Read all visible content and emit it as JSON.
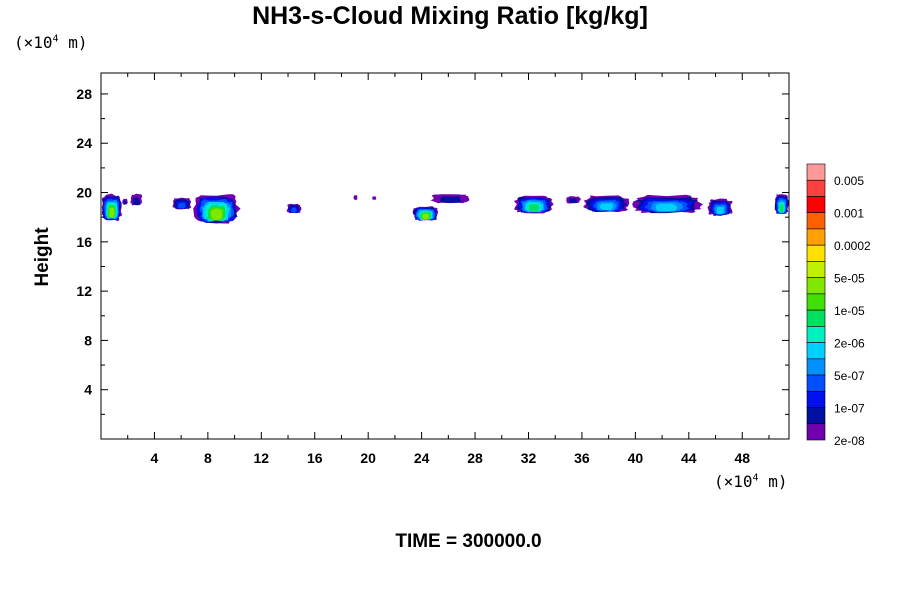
{
  "chart_data": {
    "type": "heatmap",
    "title": "NH3-s-Cloud Mixing Ratio [kg/kg]",
    "ylabel": "Height",
    "xlabel": "",
    "x_unit": {
      "prefix": "(×10",
      "exp": "4",
      "suffix": " m)"
    },
    "y_unit": {
      "prefix": "(×10",
      "exp": "4",
      "suffix": " m)"
    },
    "xlim": [
      0,
      51.5
    ],
    "ylim": [
      0,
      29.7
    ],
    "x_ticks": [
      "4",
      "8",
      "12",
      "16",
      "20",
      "24",
      "28",
      "32",
      "36",
      "40",
      "44",
      "48"
    ],
    "x_tick_values": [
      4,
      8,
      12,
      16,
      20,
      24,
      28,
      32,
      36,
      40,
      44,
      48
    ],
    "y_ticks": [
      "4",
      "8",
      "12",
      "16",
      "20",
      "24",
      "28"
    ],
    "y_tick_values": [
      4,
      8,
      12,
      16,
      20,
      24,
      28
    ],
    "grid": false,
    "colorbar": {
      "labels": [
        "0.005",
        "0.001",
        "0.0002",
        "5e-05",
        "1e-05",
        "2e-06",
        "5e-07",
        "1e-07",
        "2e-08"
      ],
      "colors": [
        "#ff9999",
        "#ff4040",
        "#ff0000",
        "#ff6000",
        "#ffa000",
        "#ffe000",
        "#c0f000",
        "#80e800",
        "#40e000",
        "#00e060",
        "#00f0c0",
        "#00d0ff",
        "#0090ff",
        "#0050ff",
        "#0010f0",
        "#0010a0",
        "#7000b0"
      ]
    },
    "cloud_layer": {
      "height_range": [
        17.5,
        20.0
      ],
      "patches": [
        {
          "x": [
            0.0,
            1.6
          ],
          "y": [
            17.7,
            19.9
          ],
          "max_level": "5e-05"
        },
        {
          "x": [
            1.6,
            2.0
          ],
          "y": [
            19.0,
            19.5
          ],
          "max_level": "1e-07"
        },
        {
          "x": [
            2.2,
            3.1
          ],
          "y": [
            18.9,
            19.9
          ],
          "max_level": "1e-07"
        },
        {
          "x": [
            5.3,
            6.8
          ],
          "y": [
            18.6,
            19.6
          ],
          "max_level": "5e-07"
        },
        {
          "x": [
            6.9,
            10.4
          ],
          "y": [
            17.5,
            19.9
          ],
          "max_level": "5e-05"
        },
        {
          "x": [
            13.9,
            15.0
          ],
          "y": [
            18.3,
            19.1
          ],
          "max_level": "5e-07"
        },
        {
          "x": [
            18.9,
            19.2
          ],
          "y": [
            19.4,
            19.8
          ],
          "max_level": "2e-08"
        },
        {
          "x": [
            20.3,
            20.6
          ],
          "y": [
            19.4,
            19.7
          ],
          "max_level": "2e-08"
        },
        {
          "x": [
            23.3,
            25.3
          ],
          "y": [
            17.7,
            18.9
          ],
          "max_level": "5e-05"
        },
        {
          "x": [
            24.7,
            27.6
          ],
          "y": [
            19.1,
            19.9
          ],
          "max_level": "1e-07"
        },
        {
          "x": [
            30.9,
            33.9
          ],
          "y": [
            18.3,
            19.8
          ],
          "max_level": "1e-05"
        },
        {
          "x": [
            34.8,
            35.9
          ],
          "y": [
            19.1,
            19.7
          ],
          "max_level": "1e-07"
        },
        {
          "x": [
            36.1,
            39.6
          ],
          "y": [
            18.4,
            19.8
          ],
          "max_level": "2e-06"
        },
        {
          "x": [
            39.6,
            45.1
          ],
          "y": [
            18.3,
            19.8
          ],
          "max_level": "2e-06"
        },
        {
          "x": [
            45.4,
            47.3
          ],
          "y": [
            18.1,
            19.5
          ],
          "max_level": "2e-06"
        },
        {
          "x": [
            50.4,
            51.5
          ],
          "y": [
            18.2,
            19.9
          ],
          "max_level": "5e-06"
        }
      ]
    }
  },
  "footer": {
    "time_label": "TIME = 300000.0"
  }
}
